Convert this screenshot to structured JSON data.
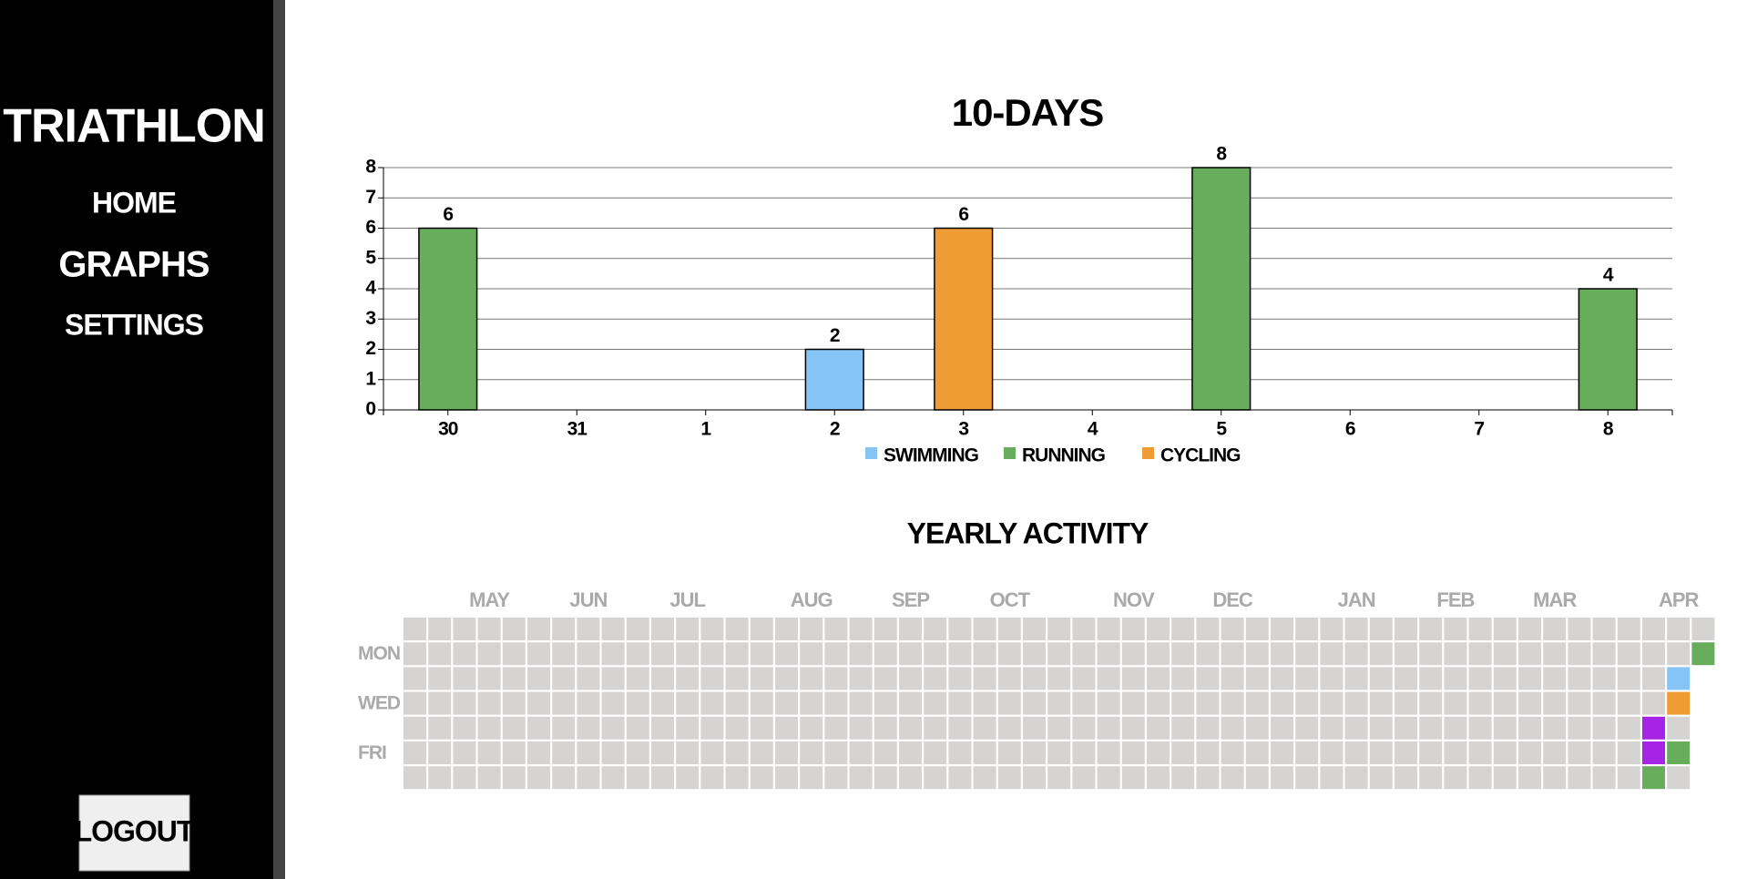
{
  "sidebar": {
    "title": "TRIATHLON",
    "nav": [
      "HOME",
      "GRAPHS",
      "SETTINGS"
    ],
    "button": "LOGOUT"
  },
  "chart_data": {
    "type": "bar",
    "title": "10-DAYS",
    "categories": [
      "30",
      "31",
      "1",
      "2",
      "3",
      "4",
      "5",
      "6",
      "7",
      "8"
    ],
    "series": [
      {
        "name": "SWIMMING",
        "color": "#85c4f4",
        "values": [
          null,
          null,
          null,
          2,
          null,
          null,
          null,
          null,
          null,
          null
        ]
      },
      {
        "name": "RUNNING",
        "color": "#68ad5c",
        "values": [
          6,
          null,
          null,
          null,
          null,
          null,
          8,
          null,
          null,
          4
        ]
      },
      {
        "name": "CYCLING",
        "color": "#f09c35",
        "values": [
          null,
          null,
          null,
          null,
          6,
          null,
          null,
          null,
          null,
          null
        ]
      }
    ],
    "ylim": [
      0,
      8
    ],
    "yticks": [
      0,
      1,
      2,
      3,
      4,
      5,
      6,
      7,
      8
    ],
    "grid": true,
    "legend": "bottom"
  },
  "heatmap": {
    "title": "YEARLY ACTIVITY",
    "weeks": 53,
    "last_week_days": 2,
    "months": [
      {
        "label": "MAY",
        "week": 3
      },
      {
        "label": "JUN",
        "week": 7
      },
      {
        "label": "JUL",
        "week": 11
      },
      {
        "label": "AUG",
        "week": 16
      },
      {
        "label": "SEP",
        "week": 20
      },
      {
        "label": "OCT",
        "week": 24
      },
      {
        "label": "NOV",
        "week": 29
      },
      {
        "label": "DEC",
        "week": 33
      },
      {
        "label": "JAN",
        "week": 38
      },
      {
        "label": "FEB",
        "week": 42
      },
      {
        "label": "MAR",
        "week": 46
      },
      {
        "label": "APR",
        "week": 51
      }
    ],
    "days": [
      {
        "label": "MON",
        "day": 1
      },
      {
        "label": "WED",
        "day": 3
      },
      {
        "label": "FRI",
        "day": 5
      }
    ],
    "active": [
      {
        "week": 52,
        "day": 1,
        "color": "#68ad5c"
      },
      {
        "week": 51,
        "day": 2,
        "color": "#85c4f4"
      },
      {
        "week": 51,
        "day": 3,
        "color": "#f09c35"
      },
      {
        "week": 51,
        "day": 5,
        "color": "#68ad5c"
      },
      {
        "week": 50,
        "day": 4,
        "color": "#a524e6"
      },
      {
        "week": 50,
        "day": 5,
        "color": "#a524e6"
      },
      {
        "week": 50,
        "day": 6,
        "color": "#68ad5c"
      }
    ]
  }
}
